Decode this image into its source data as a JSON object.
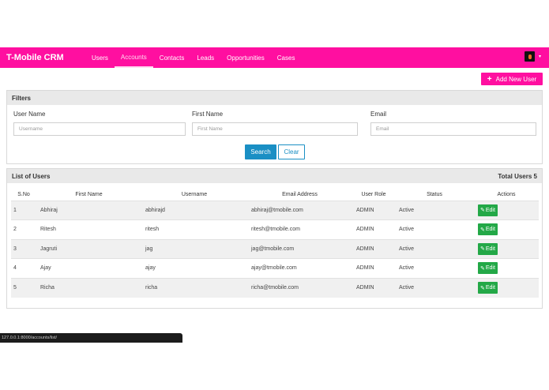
{
  "navbar": {
    "brand": "T-Mobile CRM",
    "links": [
      {
        "label": "Users",
        "active": false
      },
      {
        "label": "Accounts",
        "active": true
      },
      {
        "label": "Contacts",
        "active": false
      },
      {
        "label": "Leads",
        "active": false
      },
      {
        "label": "Opportunities",
        "active": false
      },
      {
        "label": "Cases",
        "active": false
      }
    ],
    "avatar_caret": "▾"
  },
  "add_user_button": {
    "icon": "+",
    "label": "Add New User"
  },
  "filters": {
    "title": "Filters",
    "fields": [
      {
        "label": "User Name",
        "placeholder": "Username"
      },
      {
        "label": "First Name",
        "placeholder": "First Name"
      },
      {
        "label": "Email",
        "placeholder": "Email"
      }
    ],
    "search_label": "Search",
    "clear_label": "Clear"
  },
  "users": {
    "title": "List of Users",
    "total_label": "Total Users 5",
    "columns": [
      "S.No",
      "First Name",
      "Username",
      "Email Address",
      "User Role",
      "Status",
      "Actions"
    ],
    "rows": [
      {
        "sno": "1",
        "first_name": "Abhiraj",
        "username": "abhirajd",
        "email": "abhiraj@tmobile.com",
        "role": "ADMIN",
        "status": "Active",
        "action": "Edit"
      },
      {
        "sno": "2",
        "first_name": "Ritesh",
        "username": "ritesh",
        "email": "ritesh@tmobile.com",
        "role": "ADMIN",
        "status": "Active",
        "action": "Edit"
      },
      {
        "sno": "3",
        "first_name": "Jagruti",
        "username": "jag",
        "email": "jag@tmobile.com",
        "role": "ADMIN",
        "status": "Active",
        "action": "Edit"
      },
      {
        "sno": "4",
        "first_name": "Ajay",
        "username": "ajay",
        "email": "ajay@tmobile.com",
        "role": "ADMIN",
        "status": "Active",
        "action": "Edit"
      },
      {
        "sno": "5",
        "first_name": "Richa",
        "username": "richa",
        "email": "richa@tmobile.com",
        "role": "ADMIN",
        "status": "Active",
        "action": "Edit"
      }
    ]
  },
  "statusbar": {
    "url": "127.0.0.1:8000/accounts/list/"
  },
  "colors": {
    "brand": "#ff0fa0",
    "primary": "#1a8fc4",
    "success": "#23a847"
  }
}
